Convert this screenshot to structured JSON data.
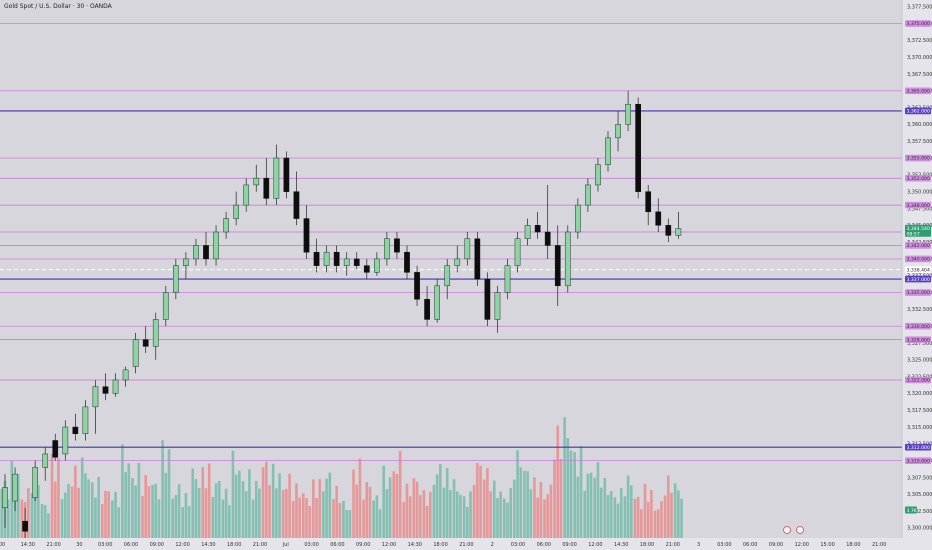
{
  "title": "Gold Spot / U.S. Dollar · 30 · OANDA",
  "chart_data": {
    "type": "candlestick",
    "ylim": [
      3298.5,
      3378.5
    ],
    "y_ticks": [
      "3,377.500",
      "3,375.000",
      "3,372.500",
      "3,370.000",
      "3,367.500",
      "3,365.000",
      "3,362.500",
      "3,360.000",
      "3,357.500",
      "3,355.000",
      "3,352.500",
      "3,350.000",
      "3,347.500",
      "3,345.000",
      "3,342.500",
      "3,340.000",
      "3,337.500",
      "3,335.000",
      "3,332.500",
      "3,330.000",
      "3,327.500",
      "3,325.000",
      "3,322.500",
      "3,320.000",
      "3,317.500",
      "3,315.000",
      "3,312.500",
      "3,310.000",
      "3,307.500",
      "3,305.000",
      "3,302.500",
      "3,300.000"
    ],
    "x_ticks": [
      "00",
      "14:30",
      "21:00",
      "30",
      "03:00",
      "06:00",
      "09:00",
      "12:00",
      "14:30",
      "18:00",
      "21:00",
      "Jul",
      "03:00",
      "06:00",
      "09:00",
      "12:00",
      "14:30",
      "18:00",
      "21:00",
      "2",
      "03:00",
      "06:00",
      "09:00",
      "12:00",
      "14:30",
      "18:00",
      "21:00",
      "3",
      "03:00",
      "06:00",
      "09:00",
      "12:00",
      "15:00",
      "18:00",
      "21:00"
    ],
    "levels_purple": [
      {
        "value": 3375.0,
        "label": "3,375.000"
      },
      {
        "value": 3365.0,
        "label": "3,365.000"
      },
      {
        "value": 3355.0,
        "label": "3,355.000"
      },
      {
        "value": 3352.0,
        "label": "3,352.000"
      },
      {
        "value": 3348.0,
        "label": "3,348.000"
      },
      {
        "value": 3344.0,
        "label": "3,344.000"
      },
      {
        "value": 3342.0,
        "label": "3,342.000"
      },
      {
        "value": 3340.0,
        "label": "3,340.000"
      },
      {
        "value": 3335.0,
        "label": "3,335.000"
      },
      {
        "value": 3330.0,
        "label": "3,330.000"
      },
      {
        "value": 3328.0,
        "label": "3,328.000"
      },
      {
        "value": 3322.0,
        "label": "3,322.000"
      },
      {
        "value": 3310.0,
        "label": "3,310.000"
      }
    ],
    "levels_blue": [
      {
        "value": 3362.0,
        "label": "3,362.000"
      },
      {
        "value": 3337.0,
        "label": "3,337.000"
      },
      {
        "value": 3312.0,
        "label": "3,312.000"
      }
    ],
    "current_price": {
      "value": 3344.54,
      "label": "3,344.540",
      "countdown": "08:57"
    },
    "dashed_level": {
      "value": 3338.404,
      "label": "3,338.404"
    },
    "volume_label": "3.7K",
    "candles": [
      {
        "o": 3303.0,
        "h": 3308.0,
        "l": 3300.0,
        "c": 3306.0
      },
      {
        "o": 3304.0,
        "h": 3309.0,
        "l": 3302.5,
        "c": 3308.0
      },
      {
        "o": 3301.0,
        "h": 3303.0,
        "l": 3298.0,
        "c": 3299.5
      },
      {
        "o": 3304.5,
        "h": 3310.0,
        "l": 3304.0,
        "c": 3309.0
      },
      {
        "o": 3309.0,
        "h": 3312.0,
        "l": 3307.0,
        "c": 3311.0
      },
      {
        "o": 3313.0,
        "h": 3314.0,
        "l": 3310.0,
        "c": 3310.5
      },
      {
        "o": 3311.0,
        "h": 3316.0,
        "l": 3310.0,
        "c": 3315.0
      },
      {
        "o": 3315.0,
        "h": 3317.0,
        "l": 3313.0,
        "c": 3314.0
      },
      {
        "o": 3314.0,
        "h": 3319.0,
        "l": 3313.0,
        "c": 3318.0
      },
      {
        "o": 3318.0,
        "h": 3322.0,
        "l": 3314.0,
        "c": 3321.0
      },
      {
        "o": 3321.0,
        "h": 3323.0,
        "l": 3319.0,
        "c": 3320.0
      },
      {
        "o": 3320.0,
        "h": 3323.0,
        "l": 3319.5,
        "c": 3322.0
      },
      {
        "o": 3322.0,
        "h": 3324.0,
        "l": 3321.0,
        "c": 3323.5
      },
      {
        "o": 3324.0,
        "h": 3329.0,
        "l": 3323.0,
        "c": 3328.0
      },
      {
        "o": 3328.0,
        "h": 3330.0,
        "l": 3326.0,
        "c": 3327.0
      },
      {
        "o": 3327.0,
        "h": 3332.0,
        "l": 3325.0,
        "c": 3331.0
      },
      {
        "o": 3331.0,
        "h": 3336.0,
        "l": 3330.0,
        "c": 3335.0
      },
      {
        "o": 3335.0,
        "h": 3340.0,
        "l": 3334.0,
        "c": 3339.0
      },
      {
        "o": 3339.0,
        "h": 3341.0,
        "l": 3337.0,
        "c": 3340.0
      },
      {
        "o": 3340.0,
        "h": 3343.0,
        "l": 3339.0,
        "c": 3342.0
      },
      {
        "o": 3342.0,
        "h": 3344.0,
        "l": 3339.0,
        "c": 3340.0
      },
      {
        "o": 3340.0,
        "h": 3345.0,
        "l": 3339.0,
        "c": 3344.0
      },
      {
        "o": 3344.0,
        "h": 3347.0,
        "l": 3343.0,
        "c": 3346.0
      },
      {
        "o": 3346.0,
        "h": 3350.0,
        "l": 3345.0,
        "c": 3348.0
      },
      {
        "o": 3348.0,
        "h": 3352.0,
        "l": 3347.0,
        "c": 3351.0
      },
      {
        "o": 3351.0,
        "h": 3354.0,
        "l": 3350.0,
        "c": 3352.0
      },
      {
        "o": 3352.0,
        "h": 3355.0,
        "l": 3348.0,
        "c": 3349.0
      },
      {
        "o": 3349.0,
        "h": 3357.0,
        "l": 3348.0,
        "c": 3355.0
      },
      {
        "o": 3355.0,
        "h": 3356.0,
        "l": 3349.0,
        "c": 3350.0
      },
      {
        "o": 3350.0,
        "h": 3353.0,
        "l": 3345.0,
        "c": 3346.0
      },
      {
        "o": 3346.0,
        "h": 3348.0,
        "l": 3340.0,
        "c": 3341.0
      },
      {
        "o": 3341.0,
        "h": 3343.0,
        "l": 3338.0,
        "c": 3339.0
      },
      {
        "o": 3339.0,
        "h": 3342.0,
        "l": 3338.0,
        "c": 3341.0
      },
      {
        "o": 3341.0,
        "h": 3342.0,
        "l": 3338.0,
        "c": 3339.0
      },
      {
        "o": 3339.0,
        "h": 3341.0,
        "l": 3337.5,
        "c": 3340.0
      },
      {
        "o": 3340.0,
        "h": 3341.0,
        "l": 3338.5,
        "c": 3339.0
      },
      {
        "o": 3339.0,
        "h": 3340.0,
        "l": 3337.0,
        "c": 3338.0
      },
      {
        "o": 3338.0,
        "h": 3341.0,
        "l": 3337.5,
        "c": 3340.0
      },
      {
        "o": 3340.0,
        "h": 3344.0,
        "l": 3339.0,
        "c": 3343.0
      },
      {
        "o": 3343.0,
        "h": 3344.0,
        "l": 3340.0,
        "c": 3341.0
      },
      {
        "o": 3341.0,
        "h": 3342.0,
        "l": 3337.0,
        "c": 3338.0
      },
      {
        "o": 3338.0,
        "h": 3339.0,
        "l": 3333.0,
        "c": 3334.0
      },
      {
        "o": 3334.0,
        "h": 3336.0,
        "l": 3330.0,
        "c": 3331.0
      },
      {
        "o": 3331.0,
        "h": 3337.0,
        "l": 3330.5,
        "c": 3336.0
      },
      {
        "o": 3336.0,
        "h": 3340.0,
        "l": 3334.0,
        "c": 3339.0
      },
      {
        "o": 3339.0,
        "h": 3342.0,
        "l": 3338.0,
        "c": 3340.0
      },
      {
        "o": 3340.0,
        "h": 3344.0,
        "l": 3339.0,
        "c": 3343.0
      },
      {
        "o": 3343.0,
        "h": 3344.0,
        "l": 3336.0,
        "c": 3337.0
      },
      {
        "o": 3337.0,
        "h": 3338.0,
        "l": 3330.0,
        "c": 3331.0
      },
      {
        "o": 3331.0,
        "h": 3336.0,
        "l": 3329.0,
        "c": 3335.0
      },
      {
        "o": 3335.0,
        "h": 3340.0,
        "l": 3334.0,
        "c": 3339.0
      },
      {
        "o": 3339.0,
        "h": 3344.0,
        "l": 3338.0,
        "c": 3343.0
      },
      {
        "o": 3343.0,
        "h": 3346.0,
        "l": 3342.0,
        "c": 3345.0
      },
      {
        "o": 3345.0,
        "h": 3347.0,
        "l": 3343.0,
        "c": 3344.0
      },
      {
        "o": 3344.0,
        "h": 3351.0,
        "l": 3340.0,
        "c": 3342.0
      },
      {
        "o": 3342.0,
        "h": 3345.0,
        "l": 3333.0,
        "c": 3336.0
      },
      {
        "o": 3336.0,
        "h": 3345.0,
        "l": 3335.0,
        "c": 3344.0
      },
      {
        "o": 3344.0,
        "h": 3349.0,
        "l": 3343.0,
        "c": 3348.0
      },
      {
        "o": 3348.0,
        "h": 3352.0,
        "l": 3347.0,
        "c": 3351.0
      },
      {
        "o": 3351.0,
        "h": 3355.0,
        "l": 3350.0,
        "c": 3354.0
      },
      {
        "o": 3354.0,
        "h": 3359.0,
        "l": 3353.0,
        "c": 3358.0
      },
      {
        "o": 3358.0,
        "h": 3362.0,
        "l": 3356.0,
        "c": 3360.0
      },
      {
        "o": 3360.0,
        "h": 3365.0,
        "l": 3359.0,
        "c": 3363.0
      },
      {
        "o": 3363.0,
        "h": 3364.0,
        "l": 3349.0,
        "c": 3350.0
      },
      {
        "o": 3350.0,
        "h": 3351.0,
        "l": 3345.0,
        "c": 3347.0
      },
      {
        "o": 3347.0,
        "h": 3349.0,
        "l": 3344.0,
        "c": 3345.0
      },
      {
        "o": 3345.0,
        "h": 3346.0,
        "l": 3342.5,
        "c": 3343.5
      },
      {
        "o": 3343.5,
        "h": 3347.0,
        "l": 3343.0,
        "c": 3344.5
      }
    ],
    "volumes": [
      48,
      62,
      40,
      55,
      30,
      70,
      45,
      58,
      66,
      50,
      42,
      38,
      75,
      60,
      52,
      48,
      80,
      44,
      36,
      58,
      62,
      50,
      40,
      70,
      55,
      48,
      66,
      60,
      52,
      44,
      38,
      50,
      56,
      42,
      30,
      64,
      48,
      36,
      58,
      70,
      44,
      52,
      40,
      62,
      56,
      48,
      38,
      66,
      58,
      46,
      40,
      72,
      60,
      50,
      44,
      90,
      100,
      76,
      58,
      62,
      48,
      40,
      52,
      36,
      44,
      30,
      50,
      46
    ]
  }
}
